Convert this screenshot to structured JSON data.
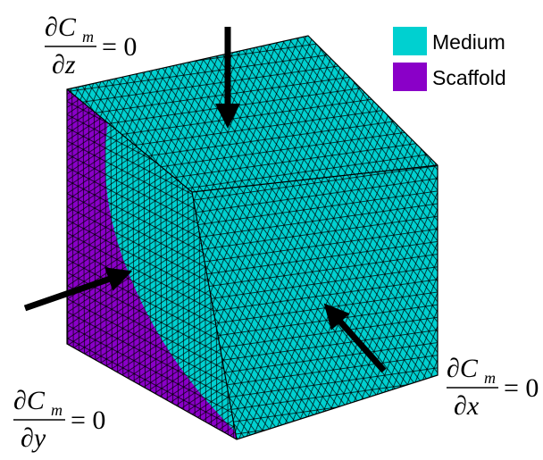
{
  "legend": [
    {
      "label": "Medium",
      "color": "#00d0d0"
    },
    {
      "label": "Scaffold",
      "color": "#8a00c8"
    }
  ],
  "equations": [
    {
      "numerator": "∂C",
      "subscript": "m",
      "denominator": "∂z",
      "rhs": "= 0"
    },
    {
      "numerator": "∂C",
      "subscript": "m",
      "denominator": "∂x",
      "rhs": "= 0"
    },
    {
      "numerator": "∂C",
      "subscript": "m",
      "denominator": "∂y",
      "rhs": "= 0"
    }
  ]
}
